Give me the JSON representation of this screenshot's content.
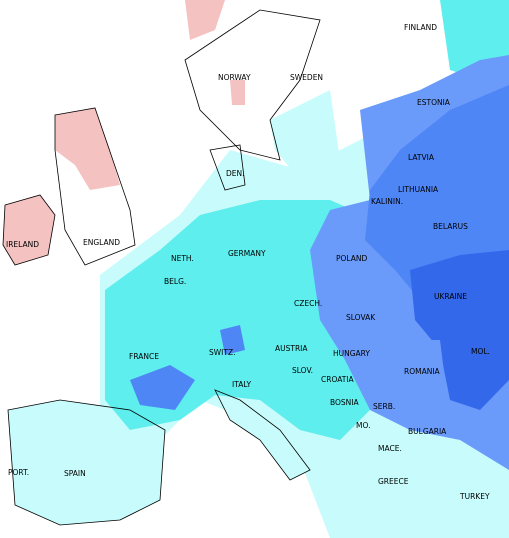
{
  "labels": [
    "FINLAND",
    "NORWAY",
    "SWEDEN",
    "ESTONIA",
    "LATVIA",
    "DEN.",
    "LITHUANIA",
    "KALININ.",
    "BELARUS",
    "IRELAND",
    "ENGLAND",
    "NETH.",
    "GERMANY",
    "POLAND",
    "BELG.",
    "CZECH.",
    "UKRAINE",
    "SLOVAK",
    "FRANCE",
    "SWITZ.",
    "AUSTRIA",
    "HUNGARY",
    "MOL.",
    "SLOV.",
    "CROATIA",
    "ROMANIA",
    "ITALY",
    "BOSNIA",
    "SERB.",
    "MO.",
    "BULGARIA",
    "MACE.",
    "PORT.",
    "SPAIN",
    "GREECE",
    "TURKEY"
  ]
}
